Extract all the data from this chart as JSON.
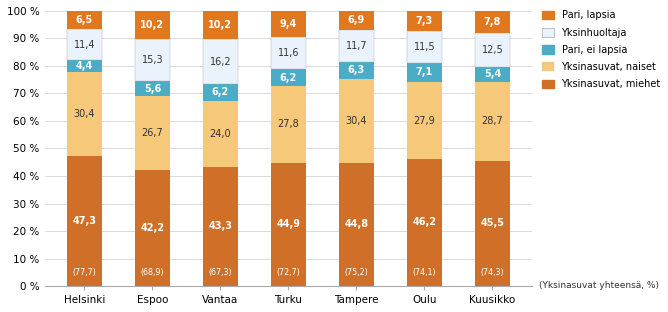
{
  "cities": [
    "Helsinki",
    "Espoo",
    "Vantaa",
    "Turku",
    "Tampere",
    "Oulu",
    "Kuusikko"
  ],
  "yksinasuvat_miehet": [
    47.3,
    42.2,
    43.3,
    44.9,
    44.8,
    46.2,
    45.5
  ],
  "yksinasuvat_naiset": [
    30.4,
    26.7,
    24.0,
    27.8,
    30.4,
    27.9,
    28.7
  ],
  "pari_ei_lapsia": [
    4.4,
    5.6,
    6.2,
    6.2,
    6.3,
    7.1,
    5.4
  ],
  "yksinhuoltaja": [
    11.4,
    15.3,
    16.2,
    11.6,
    11.7,
    11.5,
    12.5
  ],
  "pari_lapsia": [
    6.5,
    10.2,
    10.2,
    9.4,
    6.9,
    7.3,
    7.8
  ],
  "yksinasuvat_yhteensa": [
    "(77,7)",
    "(68,9)",
    "(67,3)",
    "(72,7)",
    "(75,2)",
    "(74,1)",
    "(74,3)"
  ],
  "color_miehet": "#D07028",
  "color_naiset": "#F5C87A",
  "color_pari_ei_lapsia": "#4BACC6",
  "color_yksinhuoltaja": "#EAF3FB",
  "color_pari_lapsia": "#E07820",
  "legend_labels": [
    "Pari, lapsia",
    "Yksinhuoltaja",
    "Pari, ei lapsia",
    "Yksinasuvat, naiset",
    "Yksinasuvat, miehet"
  ],
  "ylabel_text": "(Yksinasuvat yhteensä, %)",
  "ylim": [
    0,
    100
  ],
  "yticks": [
    0,
    10,
    20,
    30,
    40,
    50,
    60,
    70,
    80,
    90,
    100
  ],
  "ytick_labels": [
    "0 %",
    "10 %",
    "20 %",
    "30 %",
    "40 %",
    "50 %",
    "60 %",
    "70 %",
    "80 %",
    "90 %",
    "100 %"
  ],
  "bar_width": 0.52,
  "label_fontsize": 7.0,
  "tick_fontsize": 7.5
}
